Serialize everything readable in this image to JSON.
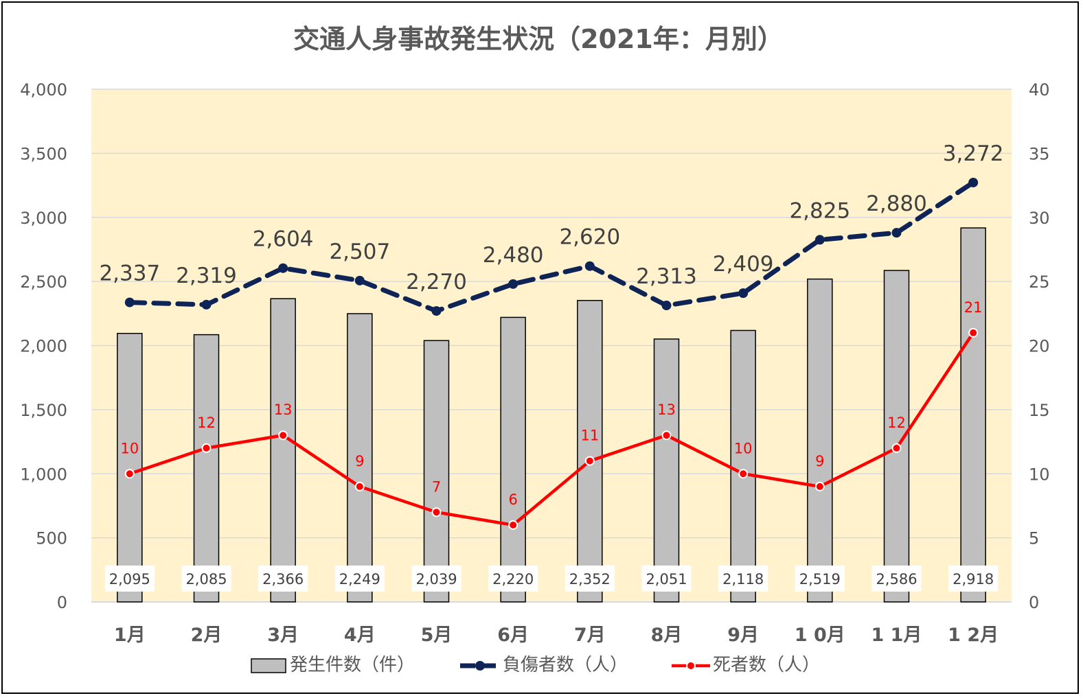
{
  "chart_data": {
    "type": "bar",
    "title": "交通人身事故発生状況（2021年：月別）",
    "categories": [
      "1月",
      "2月",
      "3月",
      "4月",
      "5月",
      "6月",
      "7月",
      "8月",
      "9月",
      "1 0月",
      "1 1月",
      "1 2月"
    ],
    "y_left": {
      "range": [
        0,
        4000
      ],
      "ticks": [
        0,
        500,
        1000,
        1500,
        2000,
        2500,
        3000,
        3500,
        4000
      ],
      "tick_labels": [
        "0",
        "500",
        "1,000",
        "1,500",
        "2,000",
        "2,500",
        "3,000",
        "3,500",
        "4,000"
      ]
    },
    "y_right": {
      "range": [
        0,
        40
      ],
      "ticks": [
        0,
        5,
        10,
        15,
        20,
        25,
        30,
        35,
        40
      ],
      "tick_labels": [
        "0",
        "5",
        "10",
        "15",
        "20",
        "25",
        "30",
        "35",
        "40"
      ]
    },
    "series": [
      {
        "name": "発生件数（件）",
        "type": "bar",
        "axis": "left",
        "color": "#bfbfbf",
        "values": [
          2095,
          2085,
          2366,
          2249,
          2039,
          2220,
          2352,
          2051,
          2118,
          2519,
          2586,
          2918
        ],
        "labels": [
          "2,095",
          "2,085",
          "2,366",
          "2,249",
          "2,039",
          "2,220",
          "2,352",
          "2,051",
          "2,118",
          "2,519",
          "2,586",
          "2,918"
        ]
      },
      {
        "name": "負傷者数（人）",
        "type": "line",
        "style": "dashed",
        "axis": "left",
        "color": "#0f2456",
        "values": [
          2337,
          2319,
          2604,
          2507,
          2270,
          2480,
          2620,
          2313,
          2409,
          2825,
          2880,
          3272
        ],
        "labels": [
          "2,337",
          "2,319",
          "2,604",
          "2,507",
          "2,270",
          "2,480",
          "2,620",
          "2,313",
          "2,409",
          "2,825",
          "2,880",
          "3,272"
        ]
      },
      {
        "name": "死者数（人）",
        "type": "line",
        "style": "solid",
        "axis": "right",
        "color": "#ff0000",
        "values": [
          10,
          12,
          13,
          9,
          7,
          6,
          11,
          13,
          10,
          9,
          12,
          21
        ],
        "labels": [
          "10",
          "12",
          "13",
          "9",
          "7",
          "6",
          "11",
          "13",
          "10",
          "9",
          "12",
          "21"
        ]
      }
    ],
    "plot_background": "#fff2cc",
    "gridlines": true,
    "legend_position": "bottom"
  }
}
